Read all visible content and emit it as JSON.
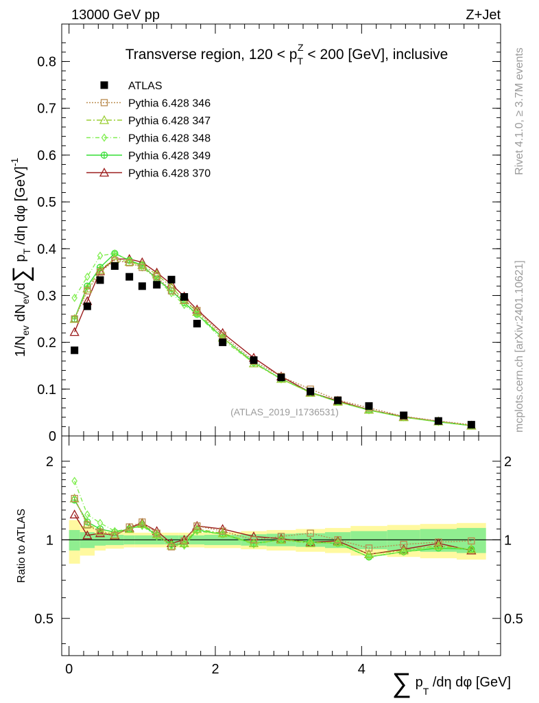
{
  "header": {
    "left": "13000 GeV pp",
    "right": "Z+Jet"
  },
  "side_labels": {
    "rivet": "Rivet 4.1.0, ≥ 3.7M events",
    "mcplots": "mcplots.cern.ch [arXiv:2401.10621]"
  },
  "chart_data": [
    {
      "type": "line",
      "panel": "main",
      "title": "Transverse region, 120 < p_T^Z < 200 [GeV], inclusive",
      "ylabel": "1/N_ev dN_ev/d∑p_T/dη dφ [GeV]^-1",
      "xlabel": "∑p_T/dη dφ [GeV]",
      "watermark": "(ATLAS_2019_I1736531)",
      "xlim": [
        -0.1,
        5.9
      ],
      "ylim": [
        0,
        0.88
      ],
      "xticks": [
        0,
        2,
        4
      ],
      "yticks": [
        0,
        0.1,
        0.2,
        0.3,
        0.4,
        0.5,
        0.6,
        0.7,
        0.8
      ],
      "x": [
        0.075,
        0.25,
        0.425,
        0.625,
        0.825,
        1.0,
        1.2,
        1.4,
        1.575,
        1.75,
        2.1,
        2.525,
        2.9,
        3.3,
        3.675,
        4.1,
        4.575,
        5.05,
        5.5
      ],
      "series": [
        {
          "name": "ATLAS",
          "color": "#000000",
          "dash": "none",
          "marker": "square-filled",
          "values": [
            0.183,
            0.277,
            0.333,
            0.363,
            0.34,
            0.32,
            0.323,
            0.334,
            0.297,
            0.24,
            0.2,
            0.162,
            0.125,
            0.095,
            0.076,
            0.064,
            0.044,
            0.032,
            0.024
          ]
        },
        {
          "name": "Pythia 6.428 346",
          "color": "#b98a4e",
          "dash": "2,2",
          "marker": "square",
          "values": [
            0.25,
            0.31,
            0.35,
            0.375,
            0.37,
            0.36,
            0.34,
            0.31,
            0.29,
            0.268,
            0.215,
            0.16,
            0.127,
            0.1,
            0.077,
            0.06,
            0.042,
            0.032,
            0.024
          ]
        },
        {
          "name": "Pythia 6.428 347",
          "color": "#9acd32",
          "dash": "7,3,2,3",
          "marker": "triangle",
          "values": [
            0.25,
            0.315,
            0.355,
            0.378,
            0.372,
            0.365,
            0.345,
            0.318,
            0.29,
            0.265,
            0.21,
            0.155,
            0.122,
            0.092,
            0.073,
            0.056,
            0.04,
            0.031,
            0.022
          ]
        },
        {
          "name": "Pythia 6.428 348",
          "color": "#80ee50",
          "dash": "6,3,1,3",
          "marker": "diamond",
          "values": [
            0.295,
            0.34,
            0.385,
            0.39,
            0.375,
            0.36,
            0.335,
            0.305,
            0.28,
            0.26,
            0.205,
            0.156,
            0.121,
            0.093,
            0.073,
            0.055,
            0.04,
            0.03,
            0.022
          ]
        },
        {
          "name": "Pythia 6.428 349",
          "color": "#33dd33",
          "dash": "none",
          "marker": "circle-plus",
          "values": [
            0.25,
            0.32,
            0.36,
            0.39,
            0.375,
            0.365,
            0.335,
            0.31,
            0.285,
            0.26,
            0.21,
            0.157,
            0.122,
            0.093,
            0.073,
            0.055,
            0.04,
            0.03,
            0.022
          ]
        },
        {
          "name": "Pythia 6.428 370",
          "color": "#9b1b1b",
          "dash": "none",
          "marker": "triangle",
          "values": [
            0.222,
            0.288,
            0.352,
            0.378,
            0.378,
            0.371,
            0.349,
            0.324,
            0.298,
            0.27,
            0.22,
            0.167,
            0.127,
            0.093,
            0.075,
            0.056,
            0.041,
            0.031,
            0.022
          ]
        }
      ]
    },
    {
      "type": "line",
      "panel": "ratio",
      "ylabel": "Ratio to ATLAS",
      "ylim": [
        0.36,
        2.5
      ],
      "yscale": "log",
      "yticks": [
        0.5,
        1,
        2
      ],
      "ytick_labels": [
        "0.5",
        "1",
        "2"
      ],
      "bins": [
        0,
        0.15,
        0.35,
        0.5,
        0.75,
        0.9,
        1.1,
        1.3,
        1.5,
        1.65,
        1.85,
        2.35,
        2.7,
        3.1,
        3.5,
        3.85,
        4.35,
        4.8,
        5.3,
        5.7
      ],
      "band_inner": [
        [
          0.91,
          1.09
        ],
        [
          0.93,
          1.07
        ],
        [
          0.95,
          1.05
        ],
        [
          0.955,
          1.045
        ],
        [
          0.96,
          1.04
        ],
        [
          0.96,
          1.04
        ],
        [
          0.96,
          1.04
        ],
        [
          0.96,
          1.04
        ],
        [
          0.96,
          1.04
        ],
        [
          0.96,
          1.04
        ],
        [
          0.955,
          1.045
        ],
        [
          0.95,
          1.05
        ],
        [
          0.945,
          1.055
        ],
        [
          0.94,
          1.06
        ],
        [
          0.93,
          1.07
        ],
        [
          0.92,
          1.08
        ],
        [
          0.91,
          1.09
        ],
        [
          0.9,
          1.1
        ],
        [
          0.89,
          1.11
        ]
      ],
      "band_outer": [
        [
          0.81,
          1.19
        ],
        [
          0.87,
          1.13
        ],
        [
          0.91,
          1.09
        ],
        [
          0.925,
          1.075
        ],
        [
          0.935,
          1.065
        ],
        [
          0.935,
          1.065
        ],
        [
          0.935,
          1.065
        ],
        [
          0.935,
          1.065
        ],
        [
          0.935,
          1.065
        ],
        [
          0.935,
          1.065
        ],
        [
          0.93,
          1.07
        ],
        [
          0.92,
          1.08
        ],
        [
          0.91,
          1.09
        ],
        [
          0.9,
          1.1
        ],
        [
          0.89,
          1.11
        ],
        [
          0.87,
          1.13
        ],
        [
          0.86,
          1.14
        ],
        [
          0.85,
          1.15
        ],
        [
          0.84,
          1.16
        ]
      ],
      "x": [
        0.075,
        0.25,
        0.425,
        0.625,
        0.825,
        1.0,
        1.2,
        1.4,
        1.575,
        1.75,
        2.1,
        2.525,
        2.9,
        3.3,
        3.675,
        4.1,
        4.575,
        5.05,
        5.5
      ],
      "series": [
        {
          "name": "Pythia 6.428 346",
          "color": "#b98a4e",
          "dash": "2,2",
          "marker": "square",
          "values": [
            1.44,
            1.14,
            1.07,
            1.04,
            1.12,
            1.17,
            1.06,
            0.94,
            0.99,
            1.13,
            1.08,
            1.0,
            1.03,
            1.06,
            1.0,
            0.93,
            0.96,
            0.98,
            0.99
          ]
        },
        {
          "name": "Pythia 6.428 347",
          "color": "#9acd32",
          "dash": "7,3,2,3",
          "marker": "triangle",
          "values": [
            1.44,
            1.15,
            1.08,
            1.05,
            1.1,
            1.15,
            1.05,
            0.95,
            0.97,
            1.1,
            1.06,
            0.97,
            1.0,
            0.97,
            0.98,
            0.88,
            0.91,
            0.95,
            0.92
          ]
        },
        {
          "name": "Pythia 6.428 348",
          "color": "#80ee50",
          "dash": "6,3,1,3",
          "marker": "diamond",
          "values": [
            1.68,
            1.25,
            1.16,
            1.08,
            1.1,
            1.13,
            1.03,
            0.95,
            0.95,
            1.08,
            1.05,
            0.96,
            1.0,
            0.98,
            0.97,
            0.86,
            0.9,
            0.94,
            0.92
          ]
        },
        {
          "name": "Pythia 6.428 349",
          "color": "#33dd33",
          "dash": "none",
          "marker": "circle-plus",
          "values": [
            1.42,
            1.17,
            1.1,
            1.07,
            1.1,
            1.14,
            1.04,
            0.96,
            0.96,
            1.09,
            1.05,
            0.97,
            1.0,
            0.98,
            0.97,
            0.86,
            0.9,
            0.93,
            0.92
          ]
        },
        {
          "name": "Pythia 6.428 370",
          "color": "#9b1b1b",
          "dash": "none",
          "marker": "triangle",
          "values": [
            1.25,
            1.04,
            1.06,
            1.04,
            1.11,
            1.16,
            1.08,
            0.97,
            1.0,
            1.13,
            1.1,
            1.03,
            1.01,
            0.98,
            0.99,
            0.88,
            0.92,
            0.97,
            0.91
          ]
        }
      ]
    }
  ]
}
